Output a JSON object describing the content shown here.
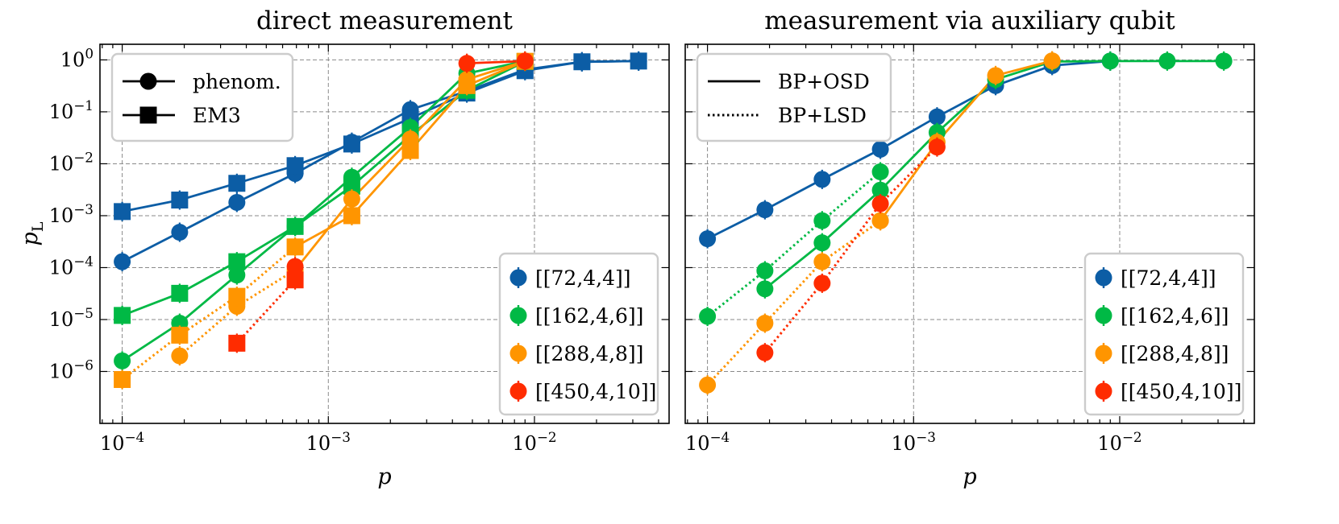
{
  "colors": {
    "72": "#0C5DA5",
    "162": "#00B945",
    "288": "#FF9500",
    "450": "#FF2C00"
  },
  "chart_data": [
    {
      "type": "line",
      "title": "direct measurement",
      "xlabel": "p",
      "ylabel": "p_L",
      "xscale": "log",
      "yscale": "log",
      "xlim": [
        7.8e-05,
        0.045
      ],
      "ylim": [
        1e-07,
        2
      ],
      "xticks": [
        0.0001,
        0.001,
        0.01
      ],
      "xtick_labels": [
        "10^-4",
        "10^-3",
        "10^-2"
      ],
      "yticks": [
        1e-06,
        1e-05,
        0.0001,
        0.001,
        0.01,
        0.1,
        1
      ],
      "ytick_labels": [
        "10^-6",
        "10^-5",
        "10^-4",
        "10^-3",
        "10^-2",
        "10^-1",
        "10^0"
      ],
      "grid": true,
      "legends": [
        {
          "placement": "top-left",
          "entries": [
            {
              "label": "phenom.",
              "marker": "circle"
            },
            {
              "label": "EM3",
              "marker": "square"
            }
          ]
        },
        {
          "placement": "bottom-right",
          "entries": [
            {
              "label": "[[72,4,4]]",
              "color_key": "72"
            },
            {
              "label": "[[162,4,6]]",
              "color_key": "162"
            },
            {
              "label": "[[288,4,8]]",
              "color_key": "288"
            },
            {
              "label": "[[450,4,10]]",
              "color_key": "450"
            }
          ]
        }
      ],
      "series": [
        {
          "name": "[[72,4,4]] phenom.",
          "code": "72",
          "marker": "circle",
          "x": [
            0.0001,
            0.00019,
            0.00036,
            0.00069,
            0.0013,
            0.0025,
            0.0047,
            0.009,
            0.017,
            0.032
          ],
          "y": [
            0.00013,
            0.00048,
            0.0018,
            0.0065,
            0.026,
            0.11,
            0.25,
            0.65,
            0.92,
            0.95
          ],
          "line": [
            {
              "from": 0,
              "to": 9,
              "style": "solid"
            }
          ]
        },
        {
          "name": "[[72,4,4]] EM3",
          "code": "72",
          "marker": "square",
          "x": [
            0.0001,
            0.00019,
            0.00036,
            0.00069,
            0.0013,
            0.0025,
            0.0047,
            0.009,
            0.017,
            0.032
          ],
          "y": [
            0.0012,
            0.002,
            0.0042,
            0.0092,
            0.024,
            0.075,
            0.23,
            0.62,
            0.92,
            0.95
          ],
          "line": [
            {
              "from": 0,
              "to": 9,
              "style": "solid"
            }
          ]
        },
        {
          "name": "[[162,4,6]] phenom.",
          "code": "162",
          "marker": "circle",
          "x": [
            0.0001,
            0.00019,
            0.00036,
            0.00069,
            0.0013,
            0.0025,
            0.0047,
            0.009
          ],
          "y": [
            1.6e-06,
            8.5e-06,
            7.2e-05,
            0.00062,
            0.0055,
            0.05,
            0.55,
            0.95
          ],
          "line": [
            {
              "from": 0,
              "to": 7,
              "style": "solid"
            }
          ]
        },
        {
          "name": "[[162,4,6]] EM3",
          "code": "162",
          "marker": "square",
          "x": [
            0.0001,
            0.00019,
            0.00036,
            0.00069,
            0.0013,
            0.0025,
            0.0047,
            0.009
          ],
          "y": [
            1.2e-05,
            3.2e-05,
            0.00013,
            0.00062,
            0.0037,
            0.035,
            0.26,
            0.93
          ],
          "line": [
            {
              "from": 0,
              "to": 7,
              "style": "solid"
            }
          ]
        },
        {
          "name": "[[288,4,8]] phenom.",
          "code": "288",
          "marker": "circle",
          "x": [
            0.00019,
            0.00036,
            0.00069,
            0.0013,
            0.0025,
            0.0047,
            0.009
          ],
          "y": [
            2e-06,
            1.8e-05,
            9e-05,
            0.0021,
            0.03,
            0.42,
            0.95
          ],
          "line": [
            {
              "from": 0,
              "to": 2,
              "style": "dotted"
            },
            {
              "from": 2,
              "to": 6,
              "style": "solid"
            }
          ]
        },
        {
          "name": "[[288,4,8]] EM3",
          "code": "288",
          "marker": "square",
          "x": [
            0.0001,
            0.00019,
            0.00036,
            0.00069,
            0.0013,
            0.0025,
            0.0047,
            0.009
          ],
          "y": [
            7e-07,
            5e-06,
            2.8e-05,
            0.00025,
            0.001,
            0.018,
            0.32,
            0.94
          ],
          "line": [
            {
              "from": 0,
              "to": 3,
              "style": "dotted"
            },
            {
              "from": 3,
              "to": 7,
              "style": "solid"
            }
          ]
        },
        {
          "name": "[[450,4,10]] phenom.",
          "code": "450",
          "marker": "circle",
          "x": [
            0.00069,
            0.0047,
            0.009
          ],
          "y": [
            0.000105,
            0.86,
            0.95
          ],
          "line": [
            {
              "from": 1,
              "to": 2,
              "style": "solid"
            }
          ]
        },
        {
          "name": "[[450,4,10]] EM3",
          "code": "450",
          "marker": "square",
          "x": [
            0.00036,
            0.00069
          ],
          "y": [
            3.5e-06,
            5.8e-05
          ],
          "line": [
            {
              "from": 0,
              "to": 1,
              "style": "dotted"
            }
          ]
        }
      ]
    },
    {
      "type": "line",
      "title": "measurement via auxiliary qubit",
      "xlabel": "p",
      "ylabel": "",
      "xscale": "log",
      "yscale": "log",
      "xlim": [
        7.8e-05,
        0.045
      ],
      "ylim": [
        1e-07,
        2
      ],
      "xticks": [
        0.0001,
        0.001,
        0.01
      ],
      "xtick_labels": [
        "10^-4",
        "10^-3",
        "10^-2"
      ],
      "yticks": [
        1e-06,
        1e-05,
        0.0001,
        0.001,
        0.01,
        0.1,
        1
      ],
      "grid": true,
      "legends": [
        {
          "placement": "top-left",
          "entries": [
            {
              "label": "BP+OSD",
              "linestyle": "solid"
            },
            {
              "label": "BP+LSD",
              "linestyle": "dotted"
            }
          ]
        },
        {
          "placement": "bottom-right",
          "entries": [
            {
              "label": "[[72,4,4]]",
              "color_key": "72"
            },
            {
              "label": "[[162,4,6]]",
              "color_key": "162"
            },
            {
              "label": "[[288,4,8]]",
              "color_key": "288"
            },
            {
              "label": "[[450,4,10]]",
              "color_key": "450"
            }
          ]
        }
      ],
      "series": [
        {
          "name": "[[72,4,4]] BP+OSD",
          "code": "72",
          "marker": "circle",
          "x": [
            0.0001,
            0.00019,
            0.00036,
            0.00069,
            0.0013,
            0.0025,
            0.0047,
            0.009
          ],
          "y": [
            0.00036,
            0.0013,
            0.005,
            0.019,
            0.08,
            0.32,
            0.78,
            0.95
          ],
          "line": [
            {
              "from": 0,
              "to": 7,
              "style": "solid"
            }
          ]
        },
        {
          "name": "[[162,4,6]] BP+OSD",
          "code": "162",
          "marker": "circle",
          "x": [
            0.00019,
            0.00036,
            0.00069,
            0.0013,
            0.0025,
            0.0047,
            0.009,
            0.017,
            0.032
          ],
          "y": [
            3.9e-05,
            0.0003,
            0.0031,
            0.04,
            0.42,
            0.93,
            0.95,
            0.95,
            0.95
          ],
          "line": [
            {
              "from": 0,
              "to": 8,
              "style": "solid"
            }
          ]
        },
        {
          "name": "[[162,4,6]] BP+LSD",
          "code": "162",
          "marker": "circle",
          "x": [
            0.0001,
            0.00019,
            0.00036,
            0.00069
          ],
          "y": [
            1.15e-05,
            8.7e-05,
            0.0008,
            0.007
          ],
          "line": [
            {
              "from": 0,
              "to": 3,
              "style": "dotted"
            }
          ]
        },
        {
          "name": "[[288,4,8]] BP+OSD",
          "code": "288",
          "marker": "circle",
          "x": [
            0.00069,
            0.0013,
            0.0025,
            0.0047
          ],
          "y": [
            0.0008,
            0.026,
            0.5,
            0.96
          ],
          "line": [
            {
              "from": 0,
              "to": 3,
              "style": "solid"
            }
          ]
        },
        {
          "name": "[[288,4,8]] BP+LSD",
          "code": "288",
          "marker": "circle",
          "x": [
            0.0001,
            0.00019,
            0.00036,
            0.00069
          ],
          "y": [
            5.5e-07,
            8.5e-06,
            0.00013,
            0.0008
          ],
          "line": [
            {
              "from": 0,
              "to": 3,
              "style": "dotted"
            }
          ]
        },
        {
          "name": "[[450,4,10]] BP+LSD",
          "code": "450",
          "marker": "circle",
          "x": [
            0.00019,
            0.00036,
            0.00069,
            0.0013
          ],
          "y": [
            2.3e-06,
            5e-05,
            0.0017,
            0.021
          ],
          "line": [
            {
              "from": 0,
              "to": 3,
              "style": "dotted"
            }
          ]
        }
      ]
    }
  ]
}
